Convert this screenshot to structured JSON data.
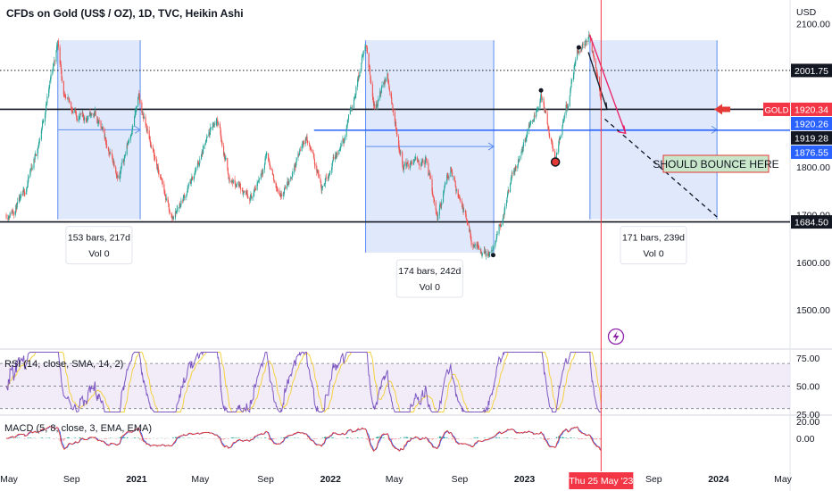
{
  "header": {
    "symbol_title": "CFDs on Gold (US$ / OZ), 1D, TVC, Heikin Ashi",
    "currency": "USD"
  },
  "colors": {
    "up": "#26a69a",
    "down": "#ef5350",
    "box_fill": "#dbe4fb",
    "box_stroke": "#5b8def",
    "blue_line": "#2962ff",
    "cursor": "#f23645",
    "rsi": "#7e57c2",
    "rsi_sma": "#f5d142",
    "macd": "#e53935",
    "macd_signal": "#2962ff",
    "label_green": "#c8e6c9"
  },
  "chart_data": [
    {
      "type": "candlestick",
      "title": "CFDs on Gold (US$ / OZ), 1D, TVC, Heikin Ashi",
      "ylabel": "USD",
      "y_scale": "linear",
      "ylim": [
        1420,
        2140
      ],
      "y_ticks": [
        {
          "value": 2100,
          "label": "2100.00"
        },
        {
          "value": 1800,
          "label": "1800.00"
        },
        {
          "value": 1700,
          "label": "1700.00"
        },
        {
          "value": 1600,
          "label": "1600.00"
        },
        {
          "value": 1500,
          "label": "1500.00"
        }
      ],
      "x_range": [
        "2020-05-01",
        "2024-05-01"
      ],
      "x_ticks": [
        {
          "date": "2020-05-01",
          "label": "May"
        },
        {
          "date": "2020-09-01",
          "label": "Sep"
        },
        {
          "date": "2021-01-01",
          "label": "2021"
        },
        {
          "date": "2021-05-01",
          "label": "May"
        },
        {
          "date": "2021-09-01",
          "label": "Sep"
        },
        {
          "date": "2022-01-01",
          "label": "2022"
        },
        {
          "date": "2022-05-01",
          "label": "May"
        },
        {
          "date": "2022-09-01",
          "label": "Sep"
        },
        {
          "date": "2023-01-01",
          "label": "2023"
        },
        {
          "date": "2023-09-01",
          "label": "Sep"
        },
        {
          "date": "2024-01-01",
          "label": "2024"
        },
        {
          "date": "2024-05-01",
          "label": "May"
        }
      ],
      "price_path": [
        {
          "date": "2020-05-01",
          "price": 1700
        },
        {
          "date": "2020-06-01",
          "price": 1730
        },
        {
          "date": "2020-07-01",
          "price": 1850
        },
        {
          "date": "2020-08-06",
          "price": 2060
        },
        {
          "date": "2020-08-20",
          "price": 1935
        },
        {
          "date": "2020-09-20",
          "price": 1900
        },
        {
          "date": "2020-10-15",
          "price": 1910
        },
        {
          "date": "2020-11-30",
          "price": 1780
        },
        {
          "date": "2021-01-05",
          "price": 1940
        },
        {
          "date": "2021-03-08",
          "price": 1690
        },
        {
          "date": "2021-04-15",
          "price": 1770
        },
        {
          "date": "2021-06-01",
          "price": 1905
        },
        {
          "date": "2021-06-25",
          "price": 1775
        },
        {
          "date": "2021-08-09",
          "price": 1740
        },
        {
          "date": "2021-09-03",
          "price": 1830
        },
        {
          "date": "2021-09-29",
          "price": 1725
        },
        {
          "date": "2021-11-16",
          "price": 1865
        },
        {
          "date": "2021-12-15",
          "price": 1760
        },
        {
          "date": "2022-01-25",
          "price": 1850
        },
        {
          "date": "2022-03-08",
          "price": 2060
        },
        {
          "date": "2022-03-25",
          "price": 1925
        },
        {
          "date": "2022-04-18",
          "price": 1990
        },
        {
          "date": "2022-05-16",
          "price": 1805
        },
        {
          "date": "2022-06-30",
          "price": 1810
        },
        {
          "date": "2022-07-21",
          "price": 1695
        },
        {
          "date": "2022-08-15",
          "price": 1800
        },
        {
          "date": "2022-09-28",
          "price": 1625
        },
        {
          "date": "2022-11-03",
          "price": 1620
        },
        {
          "date": "2022-12-15",
          "price": 1800
        },
        {
          "date": "2023-02-01",
          "price": 1955
        },
        {
          "date": "2023-02-28",
          "price": 1810
        },
        {
          "date": "2023-04-13",
          "price": 2045
        },
        {
          "date": "2023-05-04",
          "price": 2070
        },
        {
          "date": "2023-05-25",
          "price": 1940
        }
      ],
      "horizontal_levels": [
        {
          "price": 2001.75,
          "style": "dotted",
          "label": "2001.75"
        },
        {
          "price": 1920.34,
          "style": "solid",
          "label": "1920.34"
        },
        {
          "price": 1684.5,
          "style": "solid",
          "label": "1684.50"
        }
      ],
      "blue_level": {
        "price": 1876.55,
        "from": "2021-12-01"
      },
      "price_tags": [
        {
          "name": "GOLD",
          "value": "1920.34",
          "style": "red"
        },
        {
          "value": "1920.26",
          "style": "blue"
        },
        {
          "value": "1919.28",
          "style": "black"
        },
        {
          "value": "1876.55",
          "style": "blue"
        },
        {
          "value": "2001.75",
          "style": "black"
        },
        {
          "value": "1684.50",
          "style": "black"
        }
      ],
      "range_boxes": [
        {
          "from": "2020-08-06",
          "to": "2021-01-08",
          "high": 2065,
          "low": 1690,
          "label": "153 bars, 217d",
          "vol": "Vol 0"
        },
        {
          "from": "2022-03-08",
          "to": "2022-11-04",
          "high": 2065,
          "low": 1620,
          "label": "174 bars, 242d",
          "vol": "Vol 0"
        },
        {
          "from": "2023-05-04",
          "to": "2023-12-29",
          "high": 2065,
          "low": 1690,
          "label": "171 bars, 239d",
          "vol": "Vol 0"
        }
      ],
      "projection": {
        "from_date": "2023-06-01",
        "from_price": 1900,
        "to_date": "2023-12-29",
        "to_price": 1695
      },
      "annotation": "SHOULD BOUNCE HERE",
      "cursor_date_label": "Thu 25 May '23"
    },
    {
      "type": "line",
      "title": "RSI (14, close, SMA, 14, 2)",
      "ylim": [
        25,
        82
      ],
      "y_ticks": [
        75,
        50,
        25
      ],
      "y_tick_labels": [
        "75.00",
        "50.00",
        "25.00"
      ],
      "band": [
        30,
        70
      ]
    },
    {
      "type": "line",
      "title": "MACD (5, 8, close, 3, EMA, EMA)",
      "ylim": [
        -28,
        26
      ],
      "y_ticks": [
        20,
        0
      ],
      "y_tick_labels": [
        "20.00",
        "0.00"
      ]
    }
  ]
}
